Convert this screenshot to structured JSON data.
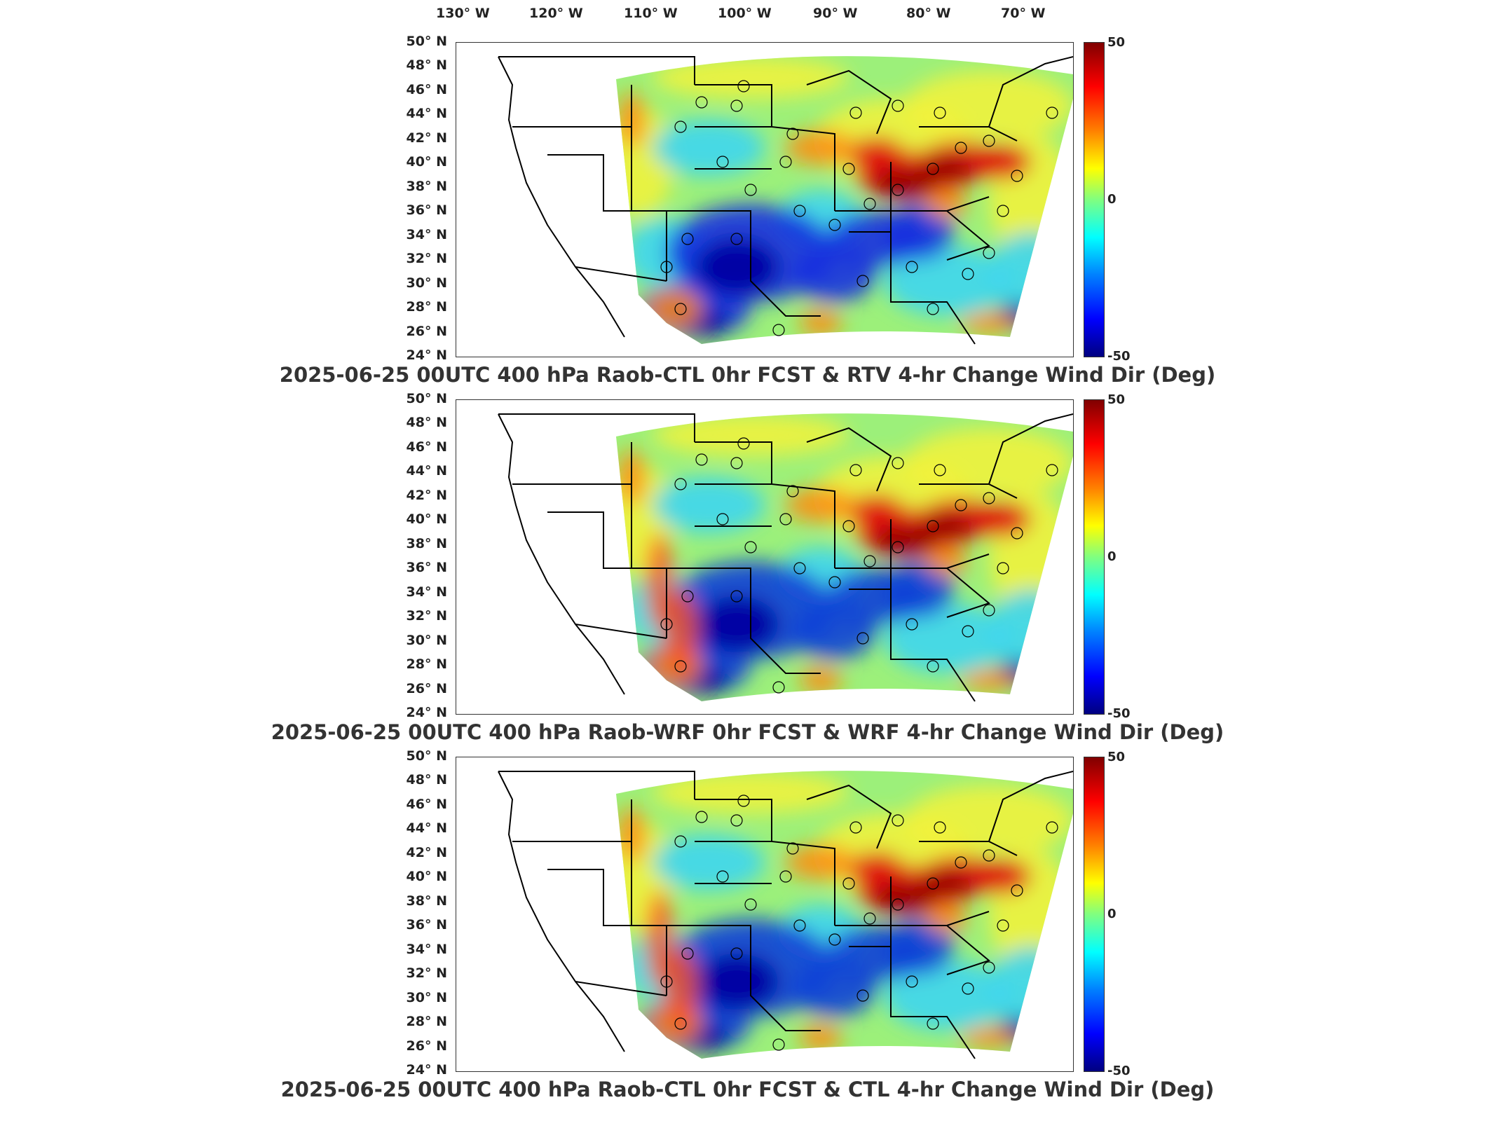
{
  "lon_labels": [
    "130° W",
    "120° W",
    "110° W",
    "100° W",
    "90° W",
    "80° W",
    "70° W"
  ],
  "lat_labels": [
    "50° N",
    "48° N",
    "46° N",
    "44° N",
    "42° N",
    "40° N",
    "38° N",
    "36° N",
    "34° N",
    "32° N",
    "30° N",
    "28° N",
    "26° N",
    "24° N"
  ],
  "colorbar": {
    "max": "50",
    "mid": "0",
    "min": "-50"
  },
  "panels": [
    {
      "title": "2025-06-25 00UTC 400 hPa Raob-CTL 0hr FCST & RTV 4-hr Change Wind Dir (Deg)"
    },
    {
      "title": "2025-06-25 00UTC 400 hPa Raob-WRF 0hr FCST & WRF 4-hr Change Wind Dir (Deg)"
    },
    {
      "title": "2025-06-25 00UTC 400 hPa Raob-CTL 0hr FCST & CTL 4-hr Change Wind Dir (Deg)"
    }
  ],
  "colors": {
    "positive": "#c00000",
    "neutral": "#80ff80",
    "negative": "#0000c0"
  }
}
